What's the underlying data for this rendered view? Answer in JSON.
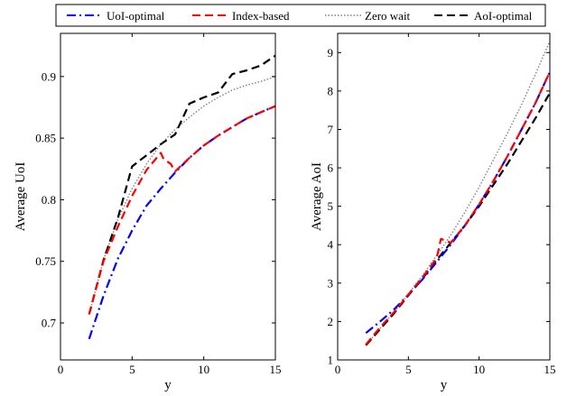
{
  "legend": {
    "placement": "top-center",
    "entries": [
      {
        "label": "UoI-optimal",
        "color": "#0000ff",
        "dash": "dash-dot"
      },
      {
        "label": "Index-based",
        "color": "#ff0000",
        "dash": "dashed"
      },
      {
        "label": "Zero wait",
        "color": "#808080",
        "dash": "dotted"
      },
      {
        "label": "AoI-optimal",
        "color": "#000000",
        "dash": "dashed"
      }
    ]
  },
  "chart_data": [
    {
      "type": "line",
      "xlabel": "y",
      "ylabel": "Average UoI",
      "xlim": [
        0,
        15
      ],
      "ylim": [
        0.67,
        0.935
      ],
      "xticks": [
        "0",
        "5",
        "10",
        "15"
      ],
      "yticks": [
        "0.7",
        "0.75",
        "0.8",
        "0.85",
        "0.9"
      ],
      "ytick_values": [
        0.7,
        0.75,
        0.8,
        0.85,
        0.9
      ],
      "xtick_values": [
        0,
        5,
        10,
        15
      ],
      "series": [
        {
          "name": "UoI-optimal",
          "x": [
            2,
            3,
            4,
            5,
            6,
            7,
            8,
            9,
            10,
            11,
            12,
            13,
            14,
            15
          ],
          "y": [
            0.687,
            0.722,
            0.752,
            0.775,
            0.795,
            0.809,
            0.822,
            0.834,
            0.844,
            0.852,
            0.859,
            0.866,
            0.871,
            0.876
          ]
        },
        {
          "name": "Index-based",
          "x": [
            2,
            3,
            4,
            5,
            6,
            7,
            7.2,
            7.7,
            8,
            9,
            10,
            11,
            12,
            13,
            14,
            15
          ],
          "y": [
            0.707,
            0.75,
            0.778,
            0.803,
            0.824,
            0.838,
            0.833,
            0.829,
            0.823,
            0.834,
            0.844,
            0.852,
            0.859,
            0.866,
            0.871,
            0.876
          ]
        },
        {
          "name": "Zero wait",
          "x": [
            2,
            3,
            4,
            5,
            6,
            7,
            8,
            9,
            10,
            11,
            12,
            13,
            14,
            15
          ],
          "y": [
            0.707,
            0.751,
            0.784,
            0.809,
            0.829,
            0.845,
            0.857,
            0.867,
            0.876,
            0.883,
            0.889,
            0.893,
            0.896,
            0.9
          ]
        },
        {
          "name": "AoI-optimal",
          "x": [
            2,
            3,
            4,
            5,
            6,
            7,
            8,
            9,
            10,
            11,
            12,
            13,
            14,
            15
          ],
          "y": [
            0.707,
            0.751,
            0.785,
            0.827,
            0.836,
            0.845,
            0.853,
            0.878,
            0.883,
            0.887,
            0.902,
            0.905,
            0.909,
            0.917
          ]
        }
      ]
    },
    {
      "type": "line",
      "xlabel": "y",
      "ylabel": "Average AoI",
      "xlim": [
        0,
        15
      ],
      "ylim": [
        1,
        9.5
      ],
      "xticks": [
        "0",
        "5",
        "10",
        "15"
      ],
      "yticks": [
        "1",
        "2",
        "3",
        "4",
        "5",
        "6",
        "7",
        "8",
        "9"
      ],
      "ytick_values": [
        1,
        2,
        3,
        4,
        5,
        6,
        7,
        8,
        9
      ],
      "xtick_values": [
        0,
        5,
        10,
        15
      ],
      "series": [
        {
          "name": "UoI-optimal",
          "x": [
            2,
            3,
            4,
            5,
            6,
            7,
            8,
            9,
            10,
            11,
            12,
            13,
            14,
            15
          ],
          "y": [
            1.7,
            2.0,
            2.32,
            2.7,
            3.1,
            3.55,
            4.0,
            4.5,
            5.05,
            5.65,
            6.3,
            7.0,
            7.7,
            8.5
          ]
        },
        {
          "name": "Index-based",
          "x": [
            2,
            3,
            4,
            5,
            6,
            7,
            7.3,
            8,
            9,
            10,
            11,
            12,
            13,
            14,
            15
          ],
          "y": [
            1.4,
            1.85,
            2.25,
            2.7,
            3.15,
            3.65,
            4.15,
            4.05,
            4.5,
            5.05,
            5.65,
            6.3,
            7.0,
            7.7,
            8.5
          ]
        },
        {
          "name": "Zero wait",
          "x": [
            2,
            3,
            4,
            5,
            6,
            7,
            8,
            9,
            10,
            11,
            12,
            13,
            14,
            15
          ],
          "y": [
            1.38,
            1.82,
            2.25,
            2.72,
            3.2,
            3.72,
            4.25,
            4.85,
            5.5,
            6.2,
            6.9,
            7.65,
            8.45,
            9.3
          ]
        },
        {
          "name": "AoI-optimal",
          "x": [
            2,
            3,
            4,
            5,
            6,
            7,
            8,
            9,
            10,
            11,
            12,
            13,
            14,
            15
          ],
          "y": [
            1.38,
            1.8,
            2.22,
            2.68,
            3.12,
            3.6,
            4.05,
            4.5,
            5.0,
            5.55,
            6.1,
            6.7,
            7.3,
            7.95
          ]
        }
      ]
    }
  ]
}
